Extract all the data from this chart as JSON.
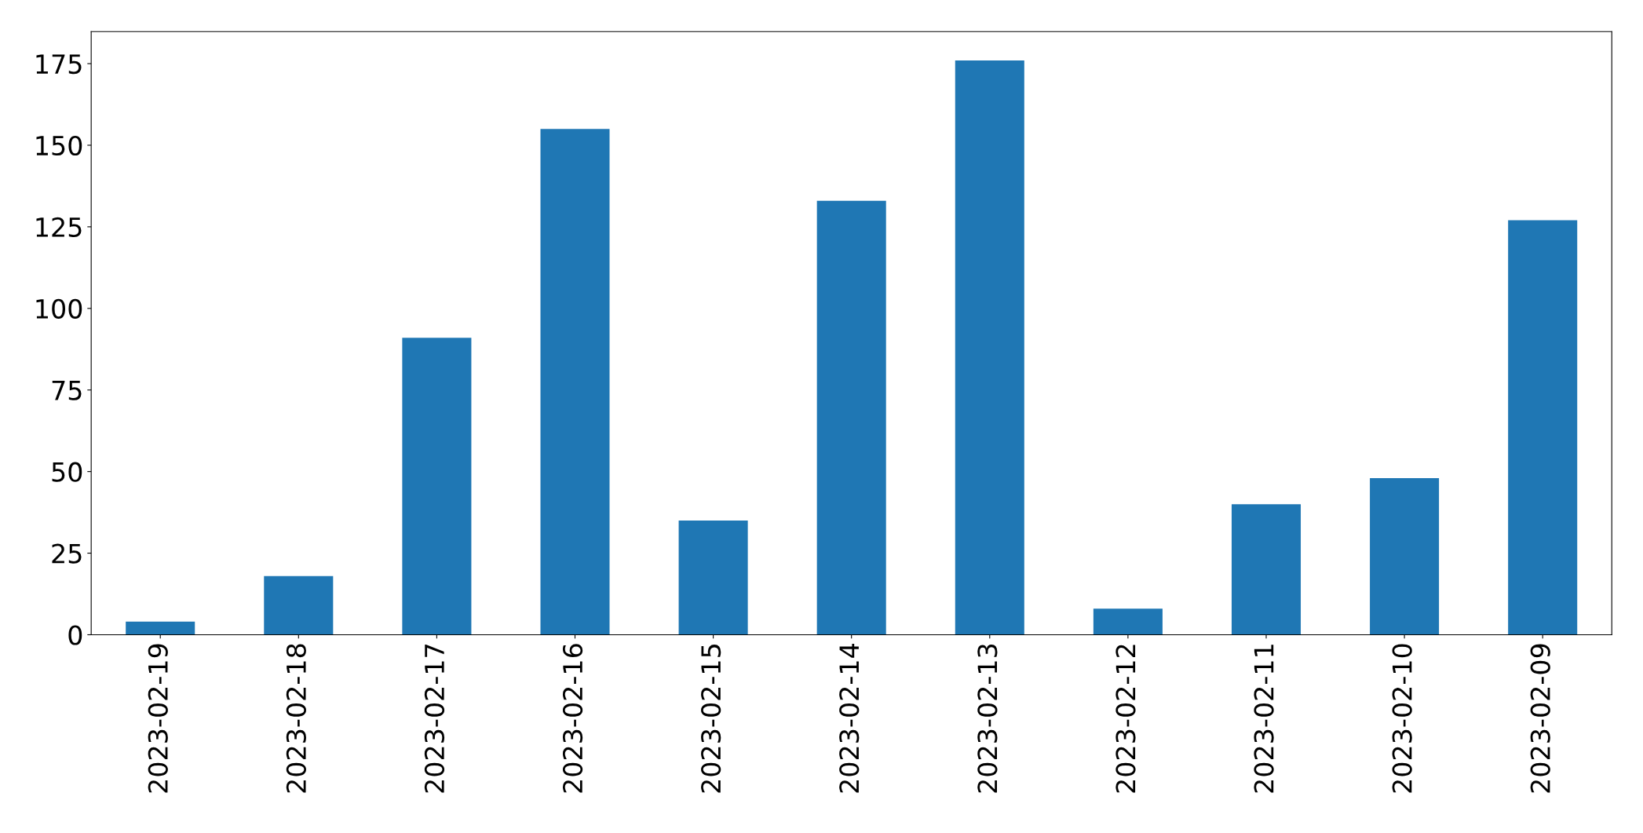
{
  "chart_data": {
    "type": "bar",
    "categories": [
      "2023-02-19",
      "2023-02-18",
      "2023-02-17",
      "2023-02-16",
      "2023-02-15",
      "2023-02-14",
      "2023-02-13",
      "2023-02-12",
      "2023-02-11",
      "2023-02-10",
      "2023-02-09"
    ],
    "values": [
      4,
      18,
      91,
      155,
      35,
      133,
      176,
      8,
      40,
      48,
      127
    ],
    "color": "#1f77b4",
    "ylim": [
      0,
      184.8
    ],
    "yticks": [
      0,
      25,
      50,
      75,
      100,
      125,
      150,
      175
    ],
    "grid": false
  }
}
